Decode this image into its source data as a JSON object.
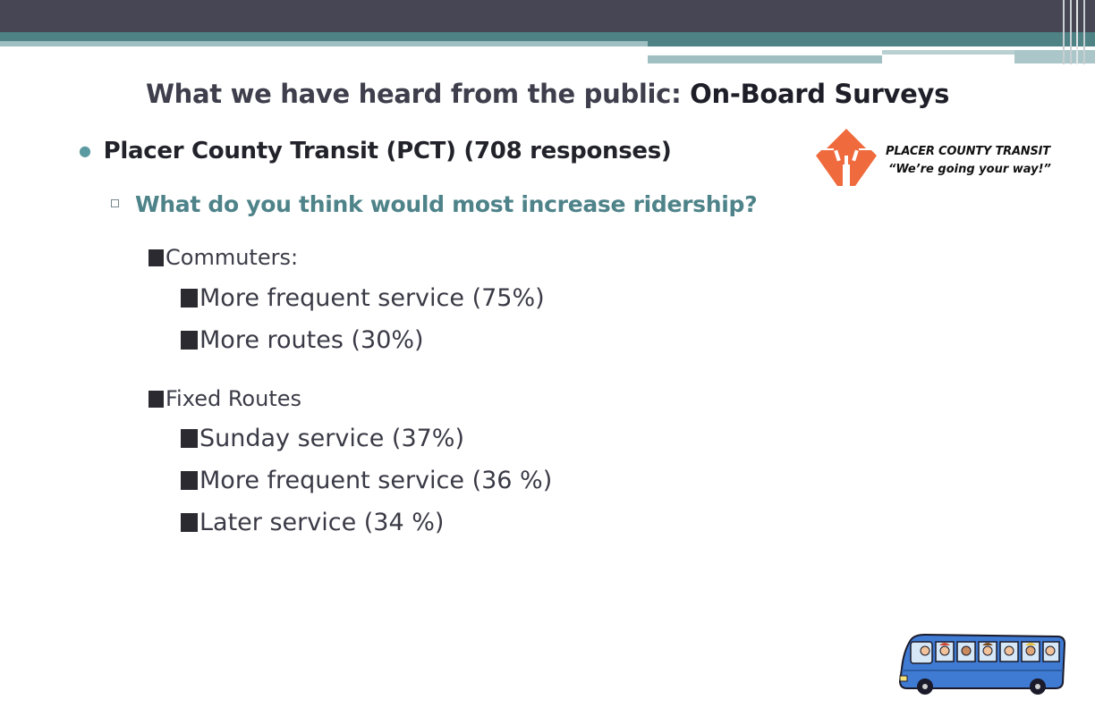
{
  "slide": {
    "title_prefix": "What we have heard from the public: ",
    "title_strong": "On-Board Surveys",
    "bullet1": "Placer County Transit (PCT) (708 responses)",
    "bullet2": "What do you think would most increase ridership?",
    "groups": [
      {
        "label": "Commuters:",
        "items": [
          "More frequent service (75%)",
          "More routes (30%)"
        ]
      },
      {
        "label": "Fixed Routes",
        "items": [
          "Sunday service (37%)",
          "More frequent service (36 %)",
          "Later service (34 %)"
        ]
      }
    ]
  },
  "logo": {
    "name": "PLACER COUNTY TRANSIT",
    "tagline": "“We’re going your way!”",
    "accent_color": "#ef6a3c"
  },
  "theme": {
    "header_dark": "#464655",
    "header_teal": "#4e8285",
    "subheading_color": "#4e8389"
  }
}
